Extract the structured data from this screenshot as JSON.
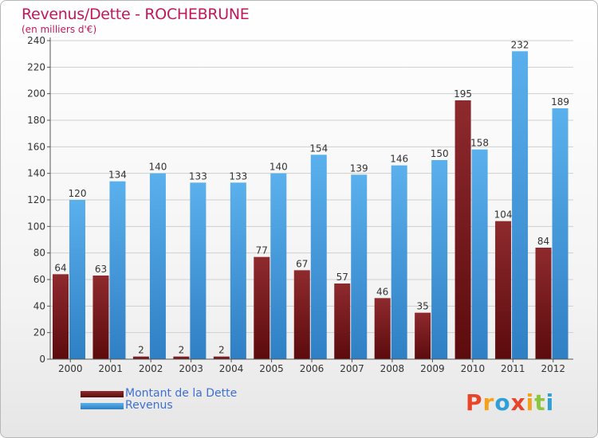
{
  "title": "Revenus/Dette - ROCHEBRUNE",
  "subtitle": "(en milliers d'€)",
  "logo": {
    "text": "Proxiti",
    "colors": [
      "#e8462b",
      "#f4a11d",
      "#2f9fd8",
      "#e8462b",
      "#f4a11d",
      "#8cc63f",
      "#2f9fd8"
    ]
  },
  "legend": {
    "placement": "bottom-left",
    "items": [
      {
        "label": "Montant de la Dette",
        "color": "#7a1416"
      },
      {
        "label": "Revenus",
        "color": "#4aa3e4"
      }
    ]
  },
  "chart_data": {
    "type": "bar",
    "title": "Revenus/Dette - ROCHEBRUNE",
    "subtitle": "(en milliers d'€)",
    "xlabel": "",
    "ylabel": "",
    "ylim": [
      0,
      240
    ],
    "yticks": [
      0,
      20,
      40,
      60,
      80,
      100,
      120,
      140,
      160,
      180,
      200,
      220,
      240
    ],
    "grid": true,
    "categories": [
      "2000",
      "2001",
      "2002",
      "2003",
      "2004",
      "2005",
      "2006",
      "2007",
      "2008",
      "2009",
      "2010",
      "2011",
      "2012"
    ],
    "series": [
      {
        "name": "Montant de la Dette",
        "color": "#7a1416",
        "values": [
          64,
          63,
          2,
          2,
          2,
          77,
          67,
          57,
          46,
          35,
          195,
          104,
          84
        ]
      },
      {
        "name": "Revenus",
        "color": "#4aa3e4",
        "values": [
          120,
          134,
          140,
          133,
          133,
          140,
          154,
          139,
          146,
          150,
          158,
          232,
          189
        ]
      }
    ]
  }
}
